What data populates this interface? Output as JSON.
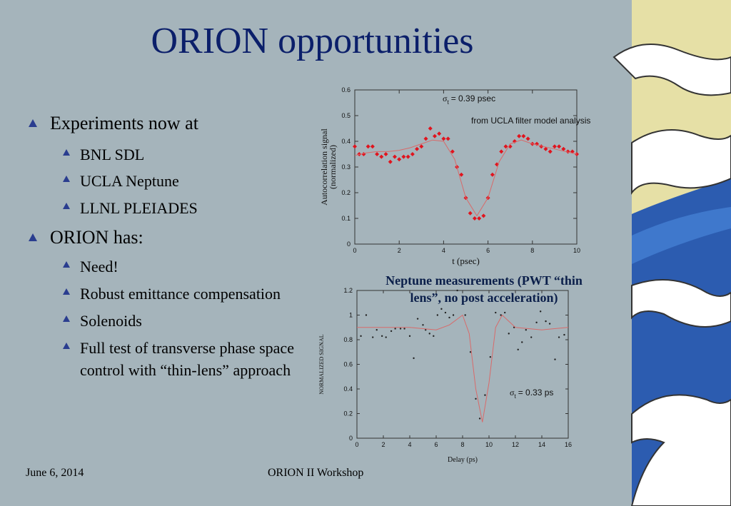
{
  "slide": {
    "title": "ORION opportunities",
    "bullets": [
      {
        "text": "Experiments now at",
        "sub": [
          "BNL SDL",
          "UCLA Neptune",
          "LLNL PLEIADES"
        ]
      },
      {
        "text": "ORION has:",
        "sub": [
          "Need!",
          "Robust emittance compensation",
          "Solenoids",
          "Full test of transverse phase space control with “thin-lens” approach"
        ]
      }
    ],
    "footer_left": "June 6, 2014",
    "footer_center": "ORION II Workshop"
  },
  "chart_data": [
    {
      "type": "scatter",
      "xlabel": "t (psec)",
      "ylabel": [
        "Autocorrelation signal",
        "(normalized)"
      ],
      "annotations": [
        {
          "symbol": "σ",
          "sub": "t",
          "text": "= 0.39 psec"
        },
        {
          "text": "from UCLA filter model analysis"
        }
      ],
      "xlim": [
        0,
        10
      ],
      "ylim": [
        0,
        0.6
      ],
      "xticks": [
        0,
        2,
        4,
        6,
        8,
        10
      ],
      "yticks": [
        0,
        0.1,
        0.2,
        0.3,
        0.4,
        0.5,
        0.6
      ],
      "series": [
        {
          "type": "scatter",
          "marker": "diamond",
          "color": "#e0141e",
          "x": [
            0,
            0.2,
            0.4,
            0.6,
            0.8,
            1.0,
            1.2,
            1.4,
            1.6,
            1.8,
            2.0,
            2.2,
            2.4,
            2.6,
            2.8,
            3.0,
            3.2,
            3.4,
            3.6,
            3.8,
            4.0,
            4.2,
            4.4,
            4.6,
            4.8,
            5.0,
            5.2,
            5.4,
            5.6,
            5.8,
            6.0,
            6.2,
            6.4,
            6.6,
            6.8,
            7.0,
            7.2,
            7.4,
            7.6,
            7.8,
            8.0,
            8.2,
            8.4,
            8.6,
            8.8,
            9.0,
            9.2,
            9.4,
            9.6,
            9.8,
            10.0
          ],
          "values": [
            0.38,
            0.35,
            0.35,
            0.38,
            0.38,
            0.35,
            0.34,
            0.35,
            0.32,
            0.34,
            0.33,
            0.34,
            0.34,
            0.35,
            0.37,
            0.38,
            0.41,
            0.45,
            0.42,
            0.43,
            0.41,
            0.41,
            0.36,
            0.3,
            0.27,
            0.18,
            0.12,
            0.1,
            0.1,
            0.11,
            0.18,
            0.27,
            0.31,
            0.36,
            0.38,
            0.38,
            0.4,
            0.42,
            0.42,
            0.41,
            0.39,
            0.39,
            0.38,
            0.37,
            0.36,
            0.38,
            0.38,
            0.37,
            0.36,
            0.36,
            0.35
          ]
        },
        {
          "type": "line",
          "color": "#d86a6a",
          "x": [
            0,
            0.5,
            1,
            1.5,
            2,
            2.5,
            3,
            3.5,
            4,
            4.5,
            5,
            5.5,
            6,
            6.5,
            7,
            7.5,
            8,
            8.5,
            9,
            9.5,
            10
          ],
          "values": [
            0.345,
            0.355,
            0.36,
            0.36,
            0.365,
            0.375,
            0.39,
            0.405,
            0.4,
            0.33,
            0.18,
            0.11,
            0.18,
            0.32,
            0.39,
            0.405,
            0.39,
            0.38,
            0.37,
            0.36,
            0.35
          ]
        }
      ]
    },
    {
      "type": "scatter",
      "title": [
        "Neptune measurements (PWT “thin",
        "lens”, no post acceleration)"
      ],
      "xlabel": "Delay (ps)",
      "ylabel": [
        "NORMALIZED SIGNAL"
      ],
      "annotations": [
        {
          "symbol": "σ",
          "sub": "t",
          "text": "= 0.33 ps"
        }
      ],
      "xlim": [
        0,
        16
      ],
      "ylim": [
        0,
        1.2
      ],
      "xticks": [
        0,
        2,
        4,
        6,
        8,
        10,
        12,
        14,
        16
      ],
      "yticks": [
        0,
        0.2,
        0.4,
        0.6,
        0.8,
        1,
        1.2
      ],
      "series": [
        {
          "type": "scatter",
          "marker": "dot",
          "color": "#222222",
          "x": [
            0.3,
            0.7,
            1.2,
            1.5,
            1.9,
            2.2,
            2.6,
            2.9,
            3.3,
            3.6,
            4.0,
            4.3,
            4.6,
            5.0,
            5.2,
            5.5,
            5.8,
            6.1,
            6.4,
            6.7,
            7.0,
            7.3,
            7.6,
            8.2,
            8.6,
            9.0,
            9.3,
            9.7,
            10.1,
            10.5,
            10.9,
            11.2,
            11.5,
            11.9,
            12.2,
            12.5,
            12.8,
            13.2,
            13.6,
            13.9,
            14.3,
            14.6,
            15.0,
            15.3,
            15.7
          ],
          "values": [
            0.83,
            1.0,
            0.82,
            0.88,
            0.83,
            0.82,
            0.87,
            0.89,
            0.89,
            0.89,
            0.83,
            0.65,
            0.97,
            0.92,
            0.88,
            0.85,
            0.83,
            1.0,
            1.05,
            1.02,
            0.98,
            1.0,
            1.2,
            1.0,
            0.7,
            0.32,
            0.16,
            0.35,
            0.66,
            1.02,
            1.0,
            1.02,
            0.85,
            0.9,
            0.72,
            0.78,
            0.88,
            0.82,
            0.94,
            1.03,
            0.95,
            0.93,
            0.64,
            0.82,
            0.84
          ]
        },
        {
          "type": "line",
          "color": "#d86a6a",
          "x": [
            0,
            2,
            4,
            6,
            7,
            8,
            8.5,
            9,
            9.5,
            10,
            10.5,
            11,
            12,
            14,
            16
          ],
          "values": [
            0.9,
            0.9,
            0.9,
            0.88,
            0.92,
            1.0,
            0.85,
            0.4,
            0.13,
            0.45,
            0.9,
            1.0,
            0.9,
            0.88,
            0.9
          ]
        }
      ]
    }
  ]
}
